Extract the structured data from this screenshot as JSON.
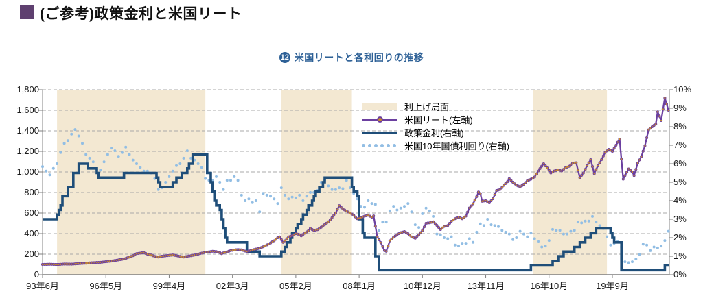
{
  "header": {
    "title": "(ご参考)政策金利と米国リート",
    "bullet_color": "#5f4070"
  },
  "subtitle": {
    "figure_number": "12",
    "text": "米国リートと各利回りの推移",
    "color": "#2d6096"
  },
  "chart_data": {
    "type": "line",
    "title": "米国リートと各利回りの推移",
    "grid": "horizontal-dashed",
    "legend_position": "top-right-inside",
    "x_axis": {
      "unit": "months_since_1993_06",
      "range": [
        0,
        346.5
      ],
      "tick_months": [
        0,
        35,
        70,
        105,
        140,
        175,
        210,
        245,
        280,
        315
      ],
      "tick_labels": [
        "93年6月",
        "96年5月",
        "99年4月",
        "02年3月",
        "05年2月",
        "08年1月",
        "10年12月",
        "13年11月",
        "16年10月",
        "19年9月"
      ]
    },
    "left_axis": {
      "range": [
        0,
        1800
      ],
      "tick_values": [
        0,
        200,
        400,
        600,
        800,
        1000,
        1200,
        1400,
        1600,
        1800
      ],
      "tick_labels": [
        "0",
        "200",
        "400",
        "600",
        "800",
        "1,000",
        "1,200",
        "1,400",
        "1,600",
        "1,800"
      ]
    },
    "right_axis": {
      "range": [
        0,
        10
      ],
      "tick_values": [
        0,
        1,
        2,
        3,
        4,
        5,
        6,
        7,
        8,
        9,
        10
      ],
      "tick_labels": [
        "0%",
        "1%",
        "2%",
        "3%",
        "4%",
        "5%",
        "6%",
        "7%",
        "8%",
        "9%",
        "10%"
      ]
    },
    "bands": {
      "name": "利上げ局面",
      "color": "#f3e8d2",
      "month_ranges": [
        [
          8,
          90
        ],
        [
          132,
          171
        ],
        [
          271,
          312
        ]
      ]
    },
    "legend": [
      "利上げ局面",
      "米国リート(左軸)",
      "政策金利(右軸)",
      "米国10年国債利回り(右軸)"
    ],
    "series": [
      {
        "name": "米国リート(左軸)",
        "axis": "left",
        "style": "line_with_markers",
        "color": "#6b3fa0",
        "marker_color": "#c98b2d",
        "points": [
          [
            0,
            100
          ],
          [
            4,
            102
          ],
          [
            8,
            99
          ],
          [
            12,
            104
          ],
          [
            16,
            103
          ],
          [
            20,
            108
          ],
          [
            24,
            112
          ],
          [
            28,
            117
          ],
          [
            32,
            121
          ],
          [
            36,
            128
          ],
          [
            40,
            138
          ],
          [
            44,
            150
          ],
          [
            46,
            158
          ],
          [
            50,
            185
          ],
          [
            52,
            205
          ],
          [
            56,
            215
          ],
          [
            58,
            200
          ],
          [
            60,
            192
          ],
          [
            62,
            178
          ],
          [
            64,
            172
          ],
          [
            66,
            180
          ],
          [
            70,
            188
          ],
          [
            72,
            192
          ],
          [
            76,
            178
          ],
          [
            78,
            172
          ],
          [
            82,
            185
          ],
          [
            84,
            192
          ],
          [
            86,
            200
          ],
          [
            88,
            210
          ],
          [
            90,
            220
          ],
          [
            92,
            222
          ],
          [
            94,
            228
          ],
          [
            96,
            225
          ],
          [
            98,
            215
          ],
          [
            99,
            205
          ],
          [
            100,
            212
          ],
          [
            102,
            222
          ],
          [
            104,
            235
          ],
          [
            108,
            245
          ],
          [
            110,
            242
          ],
          [
            112,
            230
          ],
          [
            113,
            226
          ],
          [
            115,
            235
          ],
          [
            118,
            250
          ],
          [
            120,
            258
          ],
          [
            122,
            272
          ],
          [
            124,
            290
          ],
          [
            126,
            308
          ],
          [
            128,
            330
          ],
          [
            130,
            360
          ],
          [
            131,
            368
          ],
          [
            133,
            315
          ],
          [
            134,
            330
          ],
          [
            136,
            368
          ],
          [
            138,
            380
          ],
          [
            140,
            400
          ],
          [
            142,
            390
          ],
          [
            143,
            378
          ],
          [
            145,
            405
          ],
          [
            147,
            428
          ],
          [
            148,
            450
          ],
          [
            150,
            430
          ],
          [
            152,
            438
          ],
          [
            154,
            462
          ],
          [
            156,
            488
          ],
          [
            158,
            515
          ],
          [
            160,
            555
          ],
          [
            162,
            600
          ],
          [
            164,
            672
          ],
          [
            166,
            640
          ],
          [
            168,
            620
          ],
          [
            170,
            600
          ],
          [
            172,
            578
          ],
          [
            174,
            545
          ],
          [
            176,
            555
          ],
          [
            178,
            570
          ],
          [
            180,
            578
          ],
          [
            182,
            560
          ],
          [
            183,
            572
          ],
          [
            185,
            370
          ],
          [
            187,
            312
          ],
          [
            189,
            235
          ],
          [
            190,
            228
          ],
          [
            192,
            330
          ],
          [
            194,
            365
          ],
          [
            196,
            390
          ],
          [
            198,
            410
          ],
          [
            200,
            420
          ],
          [
            202,
            400
          ],
          [
            204,
            368
          ],
          [
            206,
            355
          ],
          [
            208,
            390
          ],
          [
            210,
            430
          ],
          [
            212,
            500
          ],
          [
            214,
            505
          ],
          [
            216,
            515
          ],
          [
            218,
            480
          ],
          [
            220,
            440
          ],
          [
            222,
            470
          ],
          [
            224,
            478
          ],
          [
            226,
            520
          ],
          [
            228,
            545
          ],
          [
            230,
            560
          ],
          [
            232,
            545
          ],
          [
            234,
            570
          ],
          [
            236,
            650
          ],
          [
            238,
            690
          ],
          [
            240,
            760
          ],
          [
            241,
            805
          ],
          [
            242,
            790
          ],
          [
            243,
            715
          ],
          [
            245,
            720
          ],
          [
            247,
            700
          ],
          [
            249,
            740
          ],
          [
            251,
            820
          ],
          [
            253,
            830
          ],
          [
            255,
            870
          ],
          [
            257,
            905
          ],
          [
            258,
            935
          ],
          [
            260,
            900
          ],
          [
            262,
            870
          ],
          [
            264,
            855
          ],
          [
            266,
            880
          ],
          [
            268,
            915
          ],
          [
            270,
            930
          ],
          [
            272,
            950
          ],
          [
            274,
            1010
          ],
          [
            277,
            1080
          ],
          [
            279,
            1040
          ],
          [
            281,
            990
          ],
          [
            283,
            1010
          ],
          [
            285,
            1020
          ],
          [
            287,
            1010
          ],
          [
            289,
            1040
          ],
          [
            291,
            1055
          ],
          [
            293,
            1085
          ],
          [
            295,
            1090
          ],
          [
            297,
            945
          ],
          [
            299,
            990
          ],
          [
            301,
            1060
          ],
          [
            303,
            1120
          ],
          [
            305,
            985
          ],
          [
            307,
            1060
          ],
          [
            309,
            1120
          ],
          [
            311,
            1190
          ],
          [
            313,
            1220
          ],
          [
            315,
            1200
          ],
          [
            317,
            1260
          ],
          [
            319,
            1320
          ],
          [
            321,
            930
          ],
          [
            322,
            965
          ],
          [
            324,
            1030
          ],
          [
            326,
            1000
          ],
          [
            327,
            965
          ],
          [
            329,
            1085
          ],
          [
            331,
            1150
          ],
          [
            333,
            1255
          ],
          [
            335,
            1410
          ],
          [
            337,
            1440
          ],
          [
            339,
            1465
          ],
          [
            340,
            1585
          ],
          [
            342,
            1500
          ],
          [
            344,
            1720
          ],
          [
            346,
            1600
          ]
        ]
      },
      {
        "name": "政策金利(右軸)",
        "axis": "right",
        "style": "step",
        "color": "#1f4e79",
        "points": [
          [
            0,
            3.0
          ],
          [
            8,
            3.25
          ],
          [
            9,
            3.5
          ],
          [
            10,
            3.75
          ],
          [
            11,
            4.25
          ],
          [
            14,
            4.75
          ],
          [
            17,
            5.5
          ],
          [
            20,
            6.0
          ],
          [
            25,
            5.75
          ],
          [
            30,
            5.5
          ],
          [
            31,
            5.25
          ],
          [
            45,
            5.5
          ],
          [
            63,
            5.25
          ],
          [
            64,
            5.0
          ],
          [
            65,
            4.75
          ],
          [
            72,
            5.0
          ],
          [
            74,
            5.25
          ],
          [
            77,
            5.5
          ],
          [
            80,
            5.75
          ],
          [
            81,
            6.0
          ],
          [
            83,
            6.5
          ],
          [
            91,
            5.5
          ],
          [
            93,
            5.0
          ],
          [
            94,
            4.5
          ],
          [
            95,
            4.0
          ],
          [
            96,
            3.75
          ],
          [
            98,
            3.5
          ],
          [
            99,
            3.0
          ],
          [
            100,
            2.5
          ],
          [
            101,
            2.0
          ],
          [
            102,
            1.75
          ],
          [
            113,
            1.25
          ],
          [
            120,
            1.0
          ],
          [
            132,
            1.25
          ],
          [
            134,
            1.5
          ],
          [
            135,
            1.75
          ],
          [
            137,
            2.0
          ],
          [
            138,
            2.25
          ],
          [
            140,
            2.5
          ],
          [
            141,
            2.75
          ],
          [
            143,
            3.0
          ],
          [
            144,
            3.25
          ],
          [
            146,
            3.5
          ],
          [
            147,
            3.75
          ],
          [
            149,
            4.0
          ],
          [
            150,
            4.25
          ],
          [
            151,
            4.5
          ],
          [
            153,
            4.75
          ],
          [
            155,
            5.0
          ],
          [
            156,
            5.25
          ],
          [
            171,
            4.75
          ],
          [
            172,
            4.5
          ],
          [
            174,
            4.25
          ],
          [
            175,
            3.0
          ],
          [
            177,
            2.25
          ],
          [
            178,
            2.0
          ],
          [
            184,
            1.0
          ],
          [
            186,
            0.25
          ],
          [
            270,
            0.5
          ],
          [
            282,
            0.75
          ],
          [
            285,
            1.0
          ],
          [
            288,
            1.25
          ],
          [
            294,
            1.5
          ],
          [
            297,
            1.75
          ],
          [
            300,
            2.0
          ],
          [
            303,
            2.25
          ],
          [
            306,
            2.5
          ],
          [
            314,
            2.25
          ],
          [
            315,
            2.0
          ],
          [
            316,
            1.75
          ],
          [
            320,
            0.25
          ],
          [
            344,
            0.5
          ]
        ]
      },
      {
        "name": "米国10年国債利回り(右軸)",
        "axis": "right",
        "style": "dotted",
        "color": "#92bee4",
        "points_start_month": 0,
        "points_month_step": 2,
        "values": [
          5.85,
          5.6,
          5.4,
          5.75,
          6.0,
          6.6,
          7.1,
          7.25,
          7.6,
          7.85,
          7.5,
          7.1,
          6.5,
          6.3,
          6.1,
          5.7,
          5.65,
          6.1,
          6.5,
          6.85,
          6.7,
          6.4,
          6.6,
          6.9,
          6.5,
          6.2,
          6.0,
          5.8,
          5.6,
          5.6,
          5.5,
          5.2,
          4.6,
          4.7,
          5.0,
          5.3,
          5.6,
          5.9,
          6.0,
          6.3,
          6.7,
          6.3,
          6.2,
          6.0,
          5.8,
          5.2,
          5.1,
          5.1,
          5.3,
          5.0,
          4.6,
          5.1,
          5.1,
          5.3,
          5.1,
          4.3,
          4.0,
          4.1,
          3.9,
          4.0,
          3.4,
          4.4,
          4.3,
          4.25,
          4.1,
          3.85,
          4.7,
          4.3,
          4.1,
          4.2,
          4.15,
          4.3,
          4.0,
          4.25,
          4.45,
          4.45,
          4.55,
          5.0,
          5.1,
          4.8,
          4.6,
          4.6,
          4.7,
          4.65,
          5.1,
          4.7,
          4.4,
          4.1,
          3.7,
          3.65,
          4.0,
          3.85,
          3.8,
          2.4,
          2.85,
          2.85,
          3.45,
          3.7,
          3.5,
          3.6,
          3.7,
          3.85,
          3.4,
          2.7,
          2.55,
          3.3,
          3.6,
          3.45,
          3.15,
          2.2,
          2.15,
          2.0,
          1.95,
          2.05,
          1.6,
          1.55,
          1.7,
          1.7,
          1.95,
          1.75,
          2.3,
          2.75,
          2.65,
          3.0,
          2.7,
          2.65,
          2.6,
          2.4,
          2.3,
          2.2,
          1.9,
          2.0,
          2.35,
          2.2,
          2.05,
          2.25,
          1.95,
          1.8,
          1.5,
          1.55,
          1.85,
          2.45,
          2.4,
          2.4,
          2.2,
          2.2,
          2.35,
          2.4,
          2.85,
          2.8,
          2.9,
          2.9,
          3.15,
          2.85,
          2.65,
          2.5,
          2.05,
          1.6,
          1.7,
          1.8,
          1.5,
          0.7,
          0.65,
          0.7,
          0.85,
          1.1,
          1.65,
          1.6,
          1.3,
          1.5,
          1.45,
          1.55,
          1.85,
          2.35
        ]
      }
    ]
  }
}
